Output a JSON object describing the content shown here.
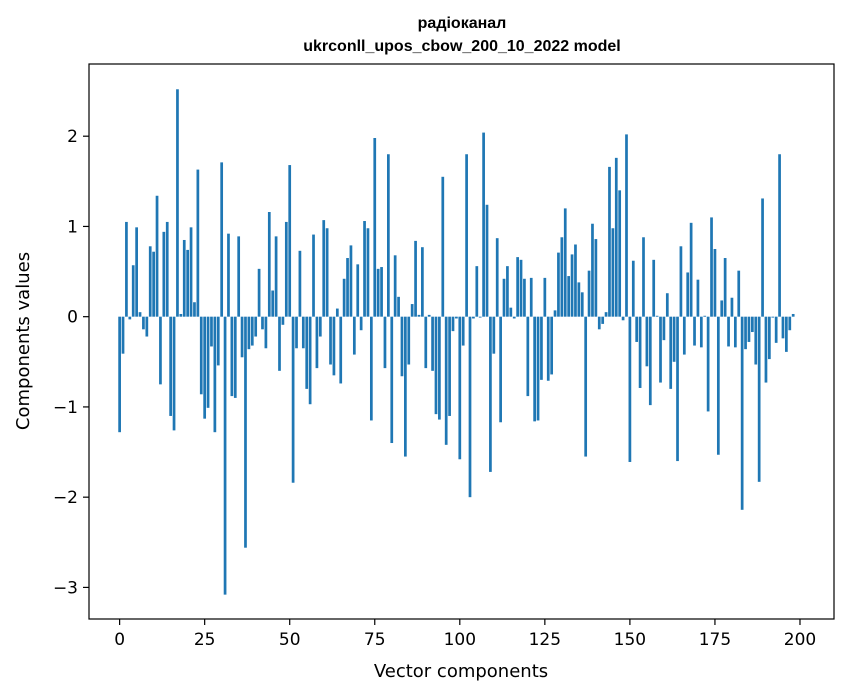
{
  "chart_data": {
    "type": "bar",
    "title_line1": "радіоканал",
    "title_line2": "ukrconll_upos_cbow_200_10_2022 model",
    "xlabel": "Vector components",
    "ylabel": "Components values",
    "xlim": [
      -9,
      210
    ],
    "ylim": [
      -3.35,
      2.8
    ],
    "xticks": [
      0,
      25,
      50,
      75,
      100,
      125,
      150,
      175,
      200
    ],
    "yticks": [
      -3,
      -2,
      -1,
      0,
      1,
      2
    ],
    "ytick_labels": [
      "−3",
      "−2",
      "−1",
      "0",
      "1",
      "2"
    ],
    "values": [
      -1.28,
      -0.41,
      1.05,
      -0.03,
      0.57,
      0.99,
      0.05,
      -0.14,
      -0.22,
      0.78,
      0.72,
      1.34,
      -0.75,
      0.94,
      1.05,
      -1.1,
      -1.26,
      2.52,
      0.03,
      0.85,
      0.74,
      0.99,
      0.16,
      1.63,
      -0.86,
      -1.13,
      -1.01,
      -0.33,
      -1.28,
      -0.54,
      1.71,
      -3.08,
      0.92,
      -0.88,
      -0.9,
      0.89,
      -0.45,
      -2.56,
      -0.36,
      -0.32,
      -0.22,
      0.53,
      -0.14,
      -0.35,
      1.16,
      0.29,
      0.89,
      -0.6,
      -0.09,
      1.05,
      1.68,
      -1.84,
      -0.35,
      0.73,
      -0.35,
      -0.8,
      -0.97,
      0.91,
      -0.57,
      -0.22,
      1.07,
      0.98,
      -0.53,
      -0.65,
      0.09,
      -0.74,
      0.42,
      0.65,
      0.79,
      -0.42,
      0.58,
      -0.15,
      1.06,
      0.98,
      -1.15,
      1.98,
      0.53,
      0.55,
      -0.57,
      1.8,
      -1.4,
      0.68,
      0.22,
      -0.66,
      -1.55,
      -0.53,
      0.14,
      0.84,
      0.02,
      0.77,
      -0.57,
      0.02,
      -0.6,
      -1.08,
      -1.14,
      1.55,
      -1.42,
      -1.1,
      -0.16,
      -0.02,
      -1.58,
      -0.32,
      1.8,
      -2.0,
      -0.02,
      0.56,
      -0.01,
      2.04,
      1.24,
      -1.72,
      -0.41,
      0.87,
      -1.17,
      0.42,
      0.56,
      0.1,
      -0.02,
      0.66,
      0.63,
      0.42,
      -0.88,
      0.43,
      -1.16,
      -1.15,
      -0.7,
      0.43,
      -0.71,
      -0.64,
      0.07,
      0.71,
      0.88,
      1.2,
      0.45,
      0.69,
      0.8,
      0.38,
      0.27,
      -1.55,
      0.51,
      1.03,
      0.86,
      -0.14,
      -0.08,
      0.05,
      1.66,
      0.98,
      1.76,
      1.4,
      -0.04,
      2.02,
      -1.61,
      0.62,
      -0.28,
      -0.79,
      0.88,
      -0.55,
      -0.98,
      0.63,
      0.01,
      -0.73,
      -0.26,
      0.26,
      -0.8,
      -0.5,
      -1.6,
      0.78,
      -0.42,
      0.49,
      1.04,
      -0.32,
      0.41,
      -0.34,
      0.01,
      -1.05,
      1.1,
      0.75,
      -1.53,
      0.18,
      0.65,
      -0.33,
      0.21,
      -0.34,
      0.51,
      -2.14,
      -0.36,
      -0.28,
      -0.17,
      -0.53,
      -1.83,
      1.31,
      -0.73,
      -0.47,
      -0.01,
      -0.29,
      1.8,
      -0.24,
      -0.39,
      -0.15,
      0.03
    ]
  }
}
